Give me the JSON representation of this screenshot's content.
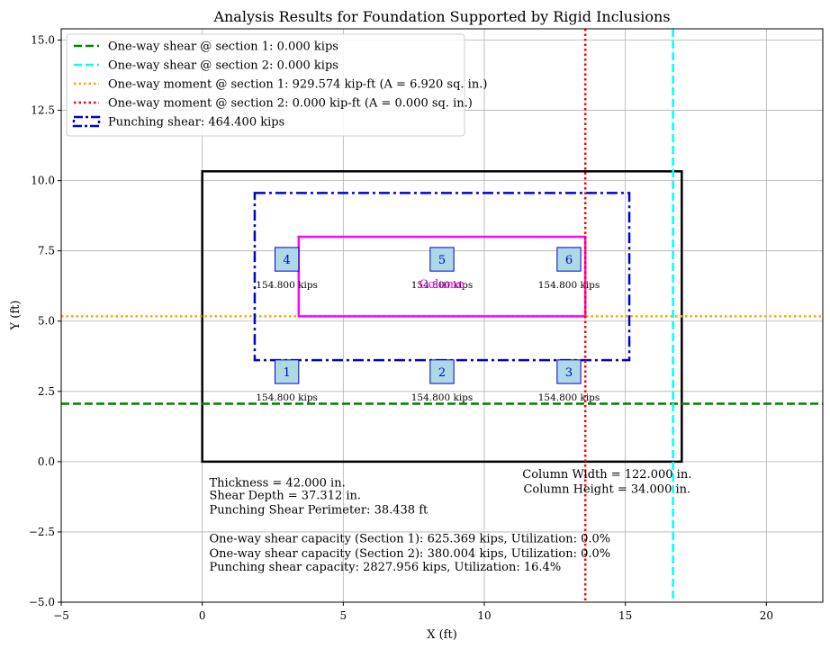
{
  "chart_data": {
    "type": "scatter",
    "title": "Analysis Results for Foundation Supported by Rigid Inclusions",
    "xlabel": "X (ft)",
    "ylabel": "Y (ft)",
    "xlim": [
      -5,
      22
    ],
    "ylim": [
      -5,
      15.4
    ],
    "x_ticks": [
      -5,
      0,
      5,
      10,
      15,
      20
    ],
    "x_tick_labels": [
      "−5",
      "0",
      "5",
      "10",
      "15",
      "20"
    ],
    "y_ticks": [
      -5,
      -2.5,
      0,
      2.5,
      5,
      7.5,
      10,
      12.5,
      15
    ],
    "y_tick_labels": [
      "−5.0",
      "−2.5",
      "0.0",
      "2.5",
      "5.0",
      "7.5",
      "10.0",
      "12.5",
      "15.0"
    ],
    "grid": true,
    "legend_position": "top-left",
    "legend": [
      {
        "label": "One-way shear @ section 1: 0.000 kips",
        "color": "#008000",
        "style": "dashed"
      },
      {
        "label": "One-way shear @ section 2: 0.000 kips",
        "color": "#00ffff",
        "style": "dashed"
      },
      {
        "label": "One-way moment @ section 1: 929.574 kip-ft (A = 6.920 sq. in.)",
        "color": "#ffa500",
        "style": "dotted"
      },
      {
        "label": "One-way moment @ section 2: 0.000 kip-ft (A = 0.000 sq. in.)",
        "color": "#ff0000",
        "style": "dotted"
      },
      {
        "label": "Punching shear: 464.400 kips",
        "color": "#0000dd",
        "style": "dashdot-box"
      }
    ],
    "foundation": {
      "x0": 0,
      "y0": 0,
      "x1": 17,
      "y1": 10.33,
      "color": "#000000"
    },
    "column": {
      "x0": 3.42,
      "y0": 5.17,
      "x1": 13.58,
      "y1": 8.0,
      "color": "#ff00ff",
      "label": "Column"
    },
    "punching_perimeter": {
      "x0": 1.86,
      "y0": 3.61,
      "x1": 15.14,
      "y1": 9.56,
      "color": "#0000dd"
    },
    "section_lines": {
      "shear_section_1_y": 2.06,
      "moment_section_1_y": 5.17,
      "moment_section_2_x": 13.58,
      "shear_section_2_x": 16.69
    },
    "inclusions": [
      {
        "id": "1",
        "x": 3.0,
        "y": 3.2,
        "load": "154.800 kips"
      },
      {
        "id": "2",
        "x": 8.5,
        "y": 3.2,
        "load": "154.800 kips"
      },
      {
        "id": "3",
        "x": 13.0,
        "y": 3.2,
        "load": "154.800 kips"
      },
      {
        "id": "4",
        "x": 3.0,
        "y": 7.2,
        "load": "154.800 kips"
      },
      {
        "id": "5",
        "x": 8.5,
        "y": 7.2,
        "load": "154.800 kips"
      },
      {
        "id": "6",
        "x": 13.0,
        "y": 7.2,
        "load": "154.800 kips"
      }
    ],
    "inclusion_fill": "#add8e6",
    "inclusion_edge": "#0000cc",
    "notes_left": [
      {
        "text": "Thickness = 42.000 in.",
        "x": 0.25,
        "y": -0.75
      },
      {
        "text": "Shear Depth = 37.312 in.",
        "x": 0.25,
        "y": -1.2
      },
      {
        "text": "Punching Shear Perimeter: 38.438 ft",
        "x": 0.25,
        "y": -1.72
      },
      {
        "text": "One-way shear capacity (Section 1): 625.369 kips, Utilization: 0.0%",
        "x": 0.25,
        "y": -2.75
      },
      {
        "text": "One-way shear capacity (Section 2): 380.004 kips, Utilization: 0.0%",
        "x": 0.25,
        "y": -3.27
      },
      {
        "text": "Punching shear capacity: 2827.956 kips, Utilization: 16.4%",
        "x": 0.25,
        "y": -3.75
      }
    ],
    "notes_right": [
      {
        "text": "Column Width = 122.000 in.",
        "x": 14.35,
        "y": -0.45
      },
      {
        "text": "Column Height = 34.000 in.",
        "x": 14.35,
        "y": -0.98
      }
    ]
  }
}
